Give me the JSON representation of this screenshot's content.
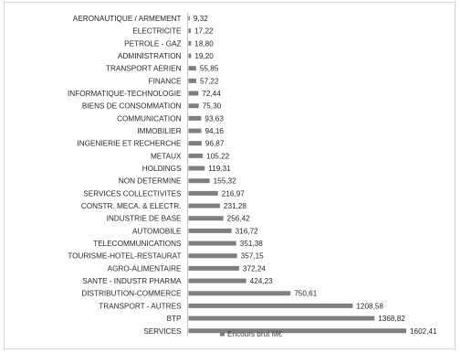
{
  "chart_data": {
    "type": "bar",
    "orientation": "horizontal",
    "categories": [
      "AERONAUTIQUE / ARMEMENT",
      "ELECTRICITE",
      "PETROLE - GAZ",
      "ADMINISTRATION",
      "TRANSPORT AERIEN",
      "FINANCE",
      "INFORMATIQUE-TECHNOLOGIE",
      "BIENS DE CONSOMMATION",
      "COMMUNICATION",
      "IMMOBILIER",
      "INGENIERIE ET RECHERCHE",
      "METAUX",
      "HOLDINGS",
      "NON DETERMINE",
      "SERVICES COLLECTIVITES",
      "CONSTR. MECA. & ELECTR.",
      "INDUSTRIE DE BASE",
      "AUTOMOBILE",
      "TELECOMMUNICATIONS",
      "TOURISME-HOTEL-RESTAURAT",
      "AGRO-ALIMENTAIRE",
      "SANTE - INDUSTR PHARMA",
      "DISTRIBUTION-COMMERCE",
      "TRANSPORT - AUTRES",
      "BTP",
      "SERVICES"
    ],
    "values": [
      9.32,
      17.22,
      18.8,
      19.2,
      55.85,
      57.22,
      72.44,
      75.3,
      93.63,
      94.16,
      96.87,
      105.22,
      119.31,
      155.32,
      216.97,
      231.28,
      256.42,
      316.72,
      351.38,
      357.15,
      372.24,
      424.23,
      750.61,
      1208.58,
      1368.82,
      1602.41
    ],
    "value_labels": [
      "9,32",
      "17,22",
      "18,80",
      "19,20",
      "55,85",
      "57,22",
      "72,44",
      "75,30",
      "93,63",
      "94,16",
      "96,87",
      "105,22",
      "119,31",
      "155,32",
      "216,97",
      "231,28",
      "256,42",
      "316,72",
      "351,38",
      "357,15",
      "372,24",
      "424,23",
      "750,61",
      "1208,58",
      "1368,82",
      "1602,41"
    ],
    "series": [
      {
        "name": "Encours brut M€"
      }
    ],
    "legend": {
      "position": "bottom",
      "label": "Encours brut M€"
    },
    "xlim": [
      0,
      1602.41
    ],
    "grid": false,
    "bar_color": "#7f7f7f"
  }
}
